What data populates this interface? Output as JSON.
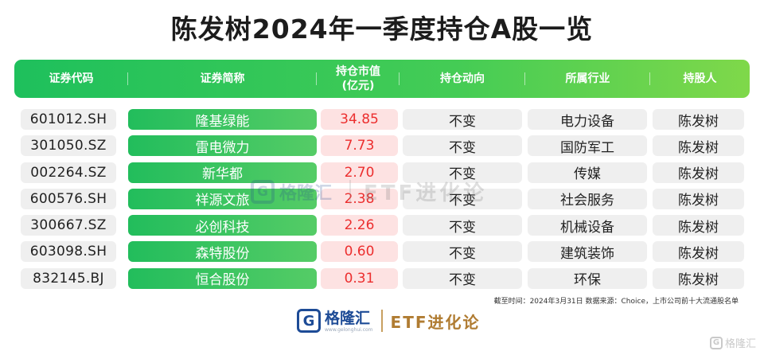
{
  "title": "陈发树2024年一季度持仓A股一览",
  "colors": {
    "header_green": "#1ec05c",
    "name_green": "#22bd5c",
    "value_red": "#ec2e2e",
    "value_bg": "#fde2e2",
    "cell_bg": "#efefef"
  },
  "columns": [
    {
      "label": "证券代码",
      "sub": ""
    },
    {
      "label": "证券简称",
      "sub": ""
    },
    {
      "label": "持仓市值",
      "sub": "(亿元)"
    },
    {
      "label": "持仓动向",
      "sub": ""
    },
    {
      "label": "所属行业",
      "sub": ""
    },
    {
      "label": "持股人",
      "sub": ""
    }
  ],
  "rows": [
    {
      "code": "601012.SH",
      "name": "隆基绿能",
      "value": "34.85",
      "action": "不变",
      "industry": "电力设备",
      "holder": "陈发树"
    },
    {
      "code": "301050.SZ",
      "name": "雷电微力",
      "value": "7.73",
      "action": "不变",
      "industry": "国防军工",
      "holder": "陈发树"
    },
    {
      "code": "002264.SZ",
      "name": "新华都",
      "value": "2.70",
      "action": "不变",
      "industry": "传媒",
      "holder": "陈发树"
    },
    {
      "code": "600576.SH",
      "name": "祥源文旅",
      "value": "2.38",
      "action": "不变",
      "industry": "社会服务",
      "holder": "陈发树"
    },
    {
      "code": "300667.SZ",
      "name": "必创科技",
      "value": "2.26",
      "action": "不变",
      "industry": "机械设备",
      "holder": "陈发树"
    },
    {
      "code": "603098.SH",
      "name": "森特股份",
      "value": "0.60",
      "action": "不变",
      "industry": "建筑装饰",
      "holder": "陈发树"
    },
    {
      "code": "832145.BJ",
      "name": "恒合股份",
      "value": "0.31",
      "action": "不变",
      "industry": "环保",
      "holder": "陈发树"
    }
  ],
  "watermark": {
    "logo_letter": "G",
    "brand": "格隆汇",
    "etf": "ETF进化论"
  },
  "source_note": "截至时间：2024年3月31日 数据来源：Choice，上市公司前十大流通股名单",
  "footer": {
    "logo_letter": "G",
    "brand": "格隆汇",
    "url": "www.gelonghui.com",
    "etf": "ETF进化论"
  },
  "corner": {
    "icon_letter": "G",
    "text": "格隆汇"
  }
}
